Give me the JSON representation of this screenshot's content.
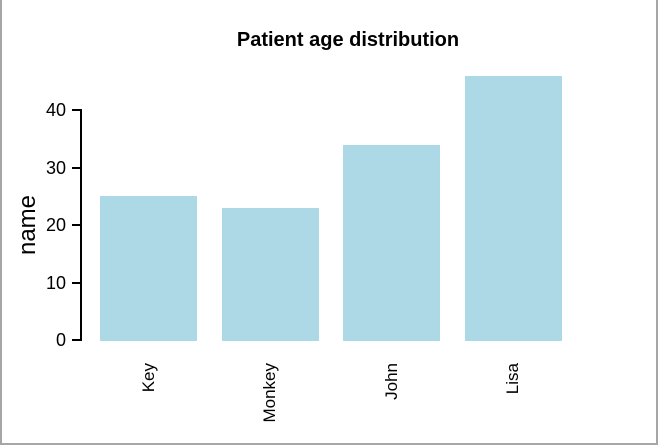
{
  "window": {
    "background_color": "#ffffff",
    "frame_color": "#a6a6a6"
  },
  "chart_data": {
    "type": "bar",
    "title": "Patient age distribution",
    "xlabel": "",
    "ylabel": "name",
    "categories": [
      "Key",
      "Monkey",
      "John",
      "Lisa"
    ],
    "values": [
      25,
      23,
      34,
      46
    ],
    "yticks": [
      0,
      10,
      20,
      30,
      40
    ],
    "ylim": [
      0,
      46
    ],
    "bar_color": "#ADD8E6",
    "bar_border": "none",
    "axis_color": "#000000",
    "grid": "off",
    "legend": "none",
    "x_tick_label_rotation": 90,
    "orientation": "vertical"
  }
}
